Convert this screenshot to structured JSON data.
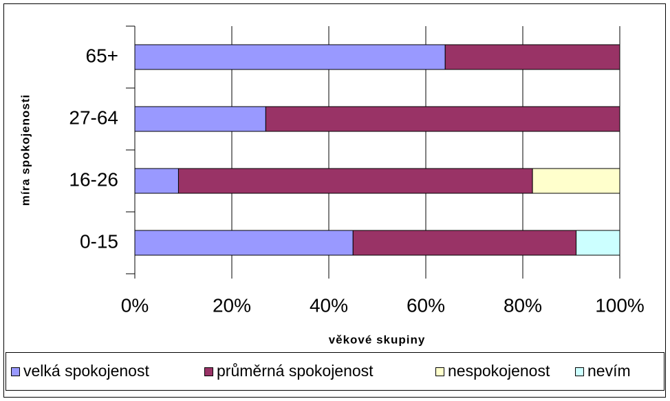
{
  "chart_data": {
    "type": "stacked-bar-horizontal",
    "y_label": "míra spokojenosti",
    "x_label": "věkové skupiny",
    "categories": [
      "0-15",
      "16-26",
      "27-64",
      "65+"
    ],
    "series": [
      {
        "name": "velká spokojenost",
        "color": "#9999ff",
        "values": [
          45,
          9,
          27,
          64
        ]
      },
      {
        "name": "průměrná spokojenost",
        "color": "#993366",
        "values": [
          46,
          73,
          73,
          36
        ]
      },
      {
        "name": "nespokojenost",
        "color": "#ffffcc",
        "values": [
          0,
          18,
          0,
          0
        ]
      },
      {
        "name": "nevím",
        "color": "#ccffff",
        "values": [
          9,
          0,
          0,
          0
        ]
      }
    ],
    "xlim": [
      0,
      100
    ],
    "xticks": [
      {
        "value": 0,
        "label": "0%"
      },
      {
        "value": 20,
        "label": "20%"
      },
      {
        "value": 40,
        "label": "40%"
      },
      {
        "value": 60,
        "label": "60%"
      },
      {
        "value": 80,
        "label": "80%"
      },
      {
        "value": 100,
        "label": "100%"
      }
    ],
    "grid": true,
    "legend": "bottom"
  }
}
